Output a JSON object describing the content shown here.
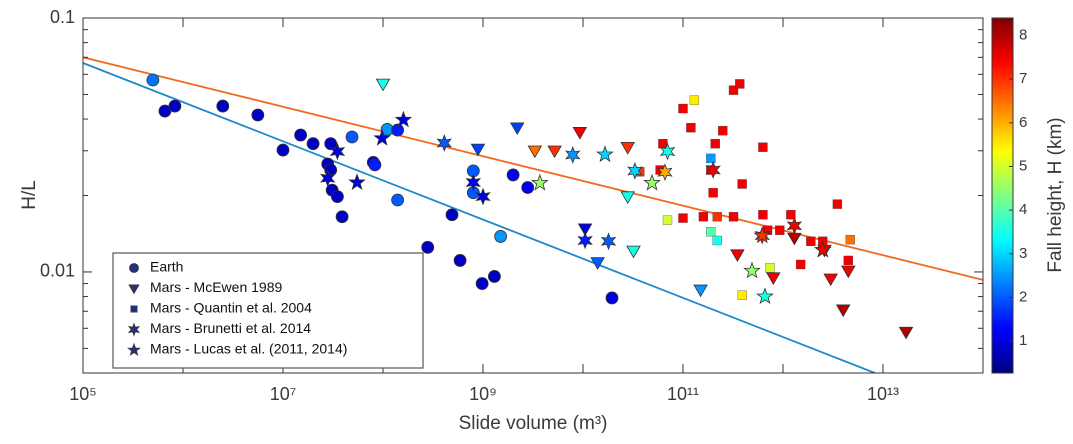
{
  "chart_data": {
    "type": "scatter",
    "x_label": "Slide volume (m³)",
    "y_label": "H/L",
    "xscale": "log",
    "yscale": "log",
    "xlim": [
      100000,
      100000000000000
    ],
    "ylim": [
      0.004,
      0.1
    ],
    "xticks": [
      {
        "value": 100000,
        "label": "10⁵"
      },
      {
        "value": 10000000,
        "label": "10⁷"
      },
      {
        "value": 1000000000,
        "label": "10⁹"
      },
      {
        "value": 100000000000,
        "label": "10¹¹"
      },
      {
        "value": 10000000000000,
        "label": "10¹³"
      }
    ],
    "xminorticks": [
      1000000,
      100000000,
      10000000000,
      1000000000000
    ],
    "yticks": [
      0.01,
      0.1
    ],
    "yminorticks": [
      0.005,
      0.006,
      0.007,
      0.008,
      0.009,
      0.02,
      0.03,
      0.04,
      0.05,
      0.06,
      0.07,
      0.08,
      0.09
    ],
    "colormap": "jet",
    "colorbar": {
      "label": "Fall height, H (km)",
      "lim": [
        0.27,
        8.4
      ],
      "ticks": [
        1,
        2,
        3,
        4,
        5,
        6,
        7,
        8
      ]
    },
    "fit_lines": [
      {
        "color": "#f26a1c",
        "x": [
          100000,
          100000000000000
        ],
        "values": [
          0.07,
          0.0093
        ]
      },
      {
        "color": "#1f8ac9",
        "x": [
          100000,
          8300000000000
        ],
        "values": [
          0.0665,
          0.004
        ]
      }
    ],
    "series": [
      {
        "name": "Earth",
        "marker": "circle",
        "color": "#272f80",
        "x": [
          500000,
          660000,
          830000,
          2500000,
          5600000,
          10000000,
          15000000,
          20000000,
          30000000,
          28000000,
          30000000,
          31000000,
          35000000,
          39000000,
          49000000,
          80000000,
          83000000,
          110000000,
          140000000,
          140000000,
          280000000,
          490000000,
          590000000,
          800000000,
          800000000,
          980000000,
          1300000000,
          1500000000,
          2000000000,
          2800000000,
          19500000000
        ],
        "values": [
          0.057,
          0.043,
          0.045,
          0.045,
          0.0415,
          0.0302,
          0.0346,
          0.032,
          0.032,
          0.0266,
          0.0252,
          0.021,
          0.0198,
          0.0165,
          0.034,
          0.027,
          0.0264,
          0.0364,
          0.0362,
          0.0192,
          0.0125,
          0.0168,
          0.0111,
          0.025,
          0.0205,
          0.009,
          0.0096,
          0.0138,
          0.0241,
          0.0215,
          0.0079
        ],
        "fall_height": [
          2.2,
          0.8,
          0.8,
          0.8,
          0.8,
          0.8,
          0.8,
          0.8,
          0.8,
          0.8,
          0.8,
          0.8,
          0.8,
          0.8,
          2,
          1,
          1.5,
          2.5,
          1.5,
          2,
          0.8,
          0.8,
          0.8,
          2,
          2,
          0.8,
          0.8,
          2.5,
          1.2,
          1.2,
          1
        ]
      },
      {
        "name": "Mars - McEwen 1989",
        "marker": "triangle",
        "color": "#272f80",
        "x": [
          100000000,
          890000000,
          2200000000,
          3300000000,
          5200000000,
          9300000000,
          10500000000,
          14000000000,
          28000000000,
          28000000000,
          32000000000,
          150000000000,
          350000000000,
          800000000000,
          1300000000000,
          2600000000000,
          3000000000000,
          4000000000000,
          4500000000000,
          17000000000000
        ],
        "values": [
          0.055,
          0.0305,
          0.037,
          0.03,
          0.03,
          0.0355,
          0.0148,
          0.0109,
          0.031,
          0.0198,
          0.0121,
          0.0085,
          0.0117,
          0.0095,
          0.0136,
          0.0122,
          0.0094,
          0.0071,
          0.0101,
          0.0058
        ],
        "fall_height": [
          3.5,
          1.8,
          1.8,
          6.5,
          7,
          7.5,
          1,
          2,
          7,
          3.5,
          3.5,
          2.5,
          7.5,
          7.5,
          8,
          7.5,
          7.5,
          8,
          7.5,
          8
        ]
      },
      {
        "name": "Mars - Quantin et al. 2004",
        "marker": "square",
        "color": "#272f80",
        "x": [
          100000000000,
          130000000000,
          120000000000,
          100000000000,
          70000000000,
          160000000000,
          190000000000,
          190000000000,
          210000000000,
          250000000000,
          200000000000,
          190000000000,
          220000000000,
          220000000000,
          320000000000,
          320000000000,
          370000000000,
          630000000000,
          630000000000,
          390000000000,
          740000000000,
          930000000000,
          1200000000000,
          1500000000000,
          1900000000000,
          2500000000000,
          3500000000000,
          4700000000000,
          4500000000000,
          390000000000,
          63000000000,
          59000000000,
          37000000000,
          700000000000
        ],
        "values": [
          0.044,
          0.0475,
          0.037,
          0.0163,
          0.016,
          0.0165,
          0.028,
          0.0252,
          0.032,
          0.036,
          0.0205,
          0.0144,
          0.0133,
          0.0165,
          0.0165,
          0.052,
          0.055,
          0.031,
          0.0168,
          0.0081,
          0.0104,
          0.0146,
          0.0168,
          0.0107,
          0.0132,
          0.0132,
          0.0185,
          0.0134,
          0.0111,
          0.0222,
          0.032,
          0.0252,
          0.0248,
          0.0146
        ],
        "fall_height": [
          7.5,
          5.5,
          7.5,
          7.5,
          5,
          7.5,
          2.5,
          7.5,
          7.5,
          7.5,
          7.5,
          4,
          3.5,
          7,
          7.5,
          7.5,
          7.5,
          7.5,
          7.5,
          5.5,
          5,
          7.5,
          7.5,
          7.5,
          7.5,
          7.5,
          7.5,
          6.5,
          7.5,
          7.5,
          7.5,
          7.5,
          7,
          7.5
        ]
      },
      {
        "name": "Mars - Brunetti et al. 2014",
        "marker": "star6",
        "color": "#272f80",
        "x": [
          35000000,
          28000000,
          410000000,
          800000000,
          1000000000,
          7900000000,
          10500000000,
          18000000000,
          33000000000,
          70000000000,
          66000000000,
          200000000000,
          620000000000,
          1300000000000
        ],
        "values": [
          0.0298,
          0.0234,
          0.0322,
          0.0225,
          0.0198,
          0.0289,
          0.0133,
          0.0132,
          0.025,
          0.0298,
          0.0247,
          0.0252,
          0.0139,
          0.0152
        ],
        "fall_height": [
          1,
          1,
          2,
          1.2,
          1,
          2.5,
          1.5,
          2,
          3,
          3.5,
          6,
          7.5,
          7,
          7.5
        ]
      },
      {
        "name": "Mars - Lucas et al. (2011, 2014)",
        "marker": "star5",
        "color": "#272f80",
        "x": [
          55000000,
          98000000,
          160000000,
          3700000000,
          16600000000,
          49000000000,
          490000000000,
          660000000000,
          620000000000,
          2500000000000
        ],
        "values": [
          0.0225,
          0.0336,
          0.0397,
          0.0224,
          0.029,
          0.0224,
          0.0101,
          0.008,
          0.0139,
          0.0122
        ],
        "fall_height": [
          1,
          1,
          1,
          4.5,
          3,
          4.5,
          4.5,
          3.5,
          7,
          7.5
        ]
      }
    ]
  }
}
